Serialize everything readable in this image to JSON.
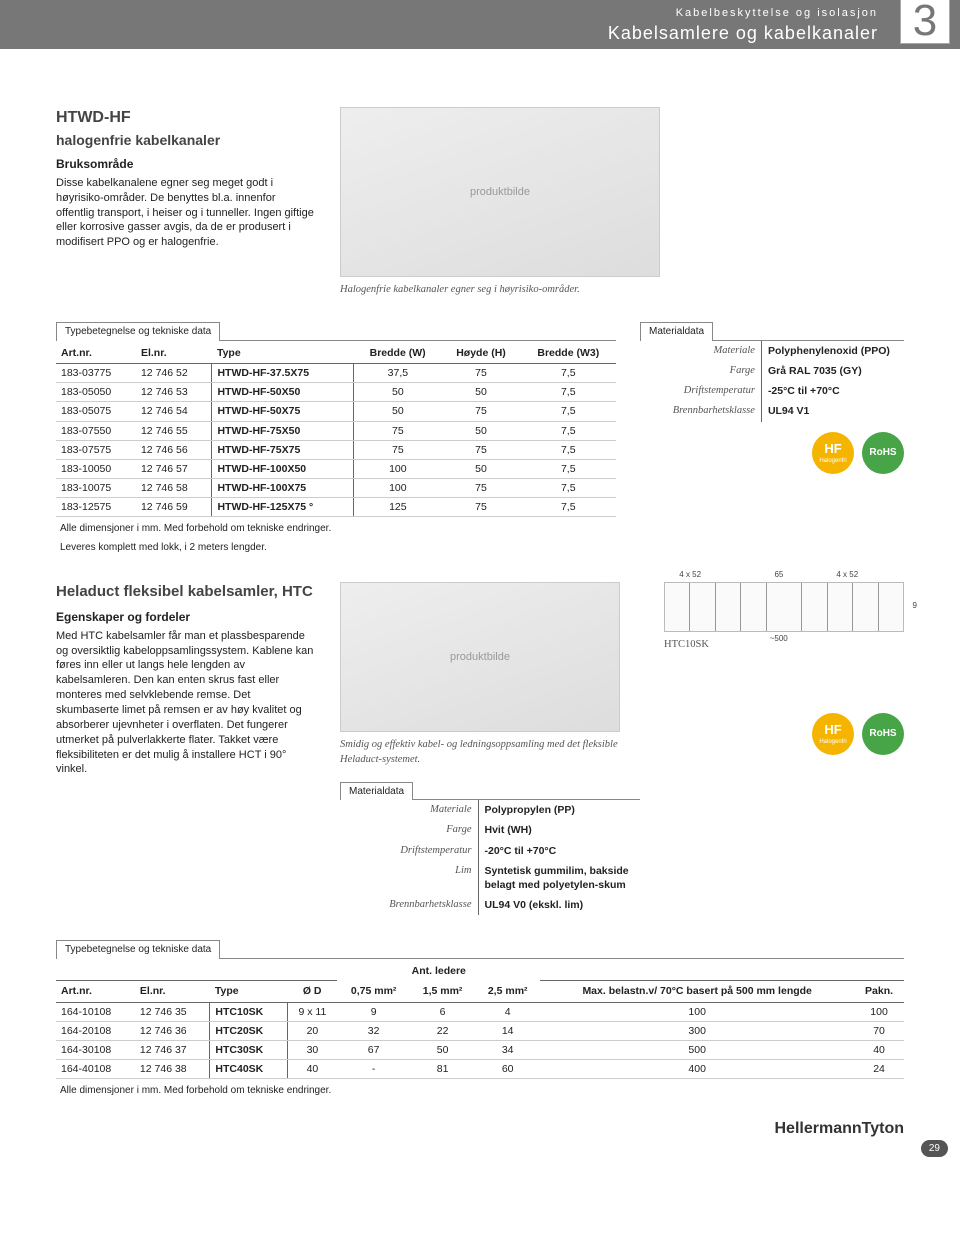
{
  "header": {
    "small": "Kabelbeskyttelse og isolasjon",
    "large": "Kabelsamlere og kabelkanaler",
    "chapter": "3"
  },
  "section1": {
    "title_line1": "HTWD-HF",
    "title_line2": "halogenfrie kabelkanaler",
    "area_heading": "Bruksområde",
    "area_text": "Disse kabelkanalene egner seg meget godt i høyrisiko-områder. De benyttes bl.a. innenfor offentlig transport, i heiser og i tunneller. Ingen giftige eller korrosive gasser avgis, da de er produsert i modifisert PPO og er halogenfrie.",
    "figure_caption": "Halogenfrie kabelkanaler egner seg i høyrisiko-områder.",
    "tech_tab": "Typebetegnelse og tekniske data",
    "tech_columns": [
      "Art.nr.",
      "El.nr.",
      "Type",
      "Bredde (W)",
      "Høyde (H)",
      "Bredde (W3)"
    ],
    "tech_rows": [
      [
        "183-03775",
        "12 746 52",
        "HTWD-HF-37.5X75",
        "37,5",
        "75",
        "7,5"
      ],
      [
        "183-05050",
        "12 746 53",
        "HTWD-HF-50X50",
        "50",
        "50",
        "7,5"
      ],
      [
        "183-05075",
        "12 746 54",
        "HTWD-HF-50X75",
        "50",
        "75",
        "7,5"
      ],
      [
        "183-07550",
        "12 746 55",
        "HTWD-HF-75X50",
        "75",
        "50",
        "7,5"
      ],
      [
        "183-07575",
        "12 746 56",
        "HTWD-HF-75X75",
        "75",
        "75",
        "7,5"
      ],
      [
        "183-10050",
        "12 746 57",
        "HTWD-HF-100X50",
        "100",
        "50",
        "7,5"
      ],
      [
        "183-10075",
        "12 746 58",
        "HTWD-HF-100X75",
        "100",
        "75",
        "7,5"
      ],
      [
        "183-12575",
        "12 746 59",
        "HTWD-HF-125X75 °",
        "125",
        "75",
        "7,5"
      ]
    ],
    "tech_footnote1": "Alle dimensjoner i mm. Med forbehold om tekniske endringer.",
    "tech_footnote2": "Leveres komplett med lokk,  i 2 meters lengder.",
    "material_tab": "Materialdata",
    "material_rows": [
      [
        "Materiale",
        "Polyphenylenoxid (PPO)"
      ],
      [
        "Farge",
        "Grå RAL 7035 (GY)"
      ],
      [
        "Driftstemperatur",
        "-25°C til +70°C"
      ],
      [
        "Brennbarhetsklasse",
        "UL94 V1"
      ]
    ],
    "badge_hf": "HF",
    "badge_hf_sub": "Halogenfri",
    "badge_rohs": "RoHS"
  },
  "section2": {
    "title": "Heladuct fleksibel kabelsamler, HTC",
    "props_heading": "Egenskaper og fordeler",
    "props_text": "Med HTC kabelsamler får man et plassbesparende og oversiktlig kabeloppsamlingssystem. Kablene kan føres inn eller ut langs hele lengden av kabelsamleren. Den kan enten skrus fast eller monteres med selvklebende remse. Det skumbaserte limet på remsen er av høy kvalitet og absorberer ujevnheter i overflaten. Det fungerer utmerket på pulverlakkerte flater. Takket være fleksibiliteten er det mulig å installere HCT i 90° vinkel.",
    "figure_caption": "Smidig og effektiv kabel- og ledningsoppsamling med det fleksible Heladuct-systemet.",
    "diagram_labels": [
      "4 x 52",
      "65",
      "4 x 52",
      "~500",
      "9"
    ],
    "diagram_side_label": "HTC10SK",
    "material_tab": "Materialdata",
    "material_rows": [
      [
        "Materiale",
        "Polypropylen (PP)"
      ],
      [
        "Farge",
        "Hvit (WH)"
      ],
      [
        "Driftstemperatur",
        "-20°C til +70°C"
      ],
      [
        "Lim",
        "Syntetisk gummilim, bakside belagt med polyetylen-skum"
      ],
      [
        "Brennbarhetsklasse",
        "UL94 V0 (ekskl. lim)"
      ]
    ],
    "tech_tab": "Typebetegnelse og tekniske data",
    "tech_super_header": "Ant. ledere",
    "tech_columns": [
      "Art.nr.",
      "El.nr.",
      "Type",
      "Ø D",
      "0,75 mm²",
      "1,5 mm²",
      "2,5 mm²",
      "Max. belastn.v/ 70°C basert på 500 mm lengde",
      "Pakn."
    ],
    "tech_rows": [
      [
        "164-10108",
        "12 746 35",
        "HTC10SK",
        "9 x 11",
        "9",
        "6",
        "4",
        "100",
        "100"
      ],
      [
        "164-20108",
        "12 746 36",
        "HTC20SK",
        "20",
        "32",
        "22",
        "14",
        "300",
        "70"
      ],
      [
        "164-30108",
        "12 746 37",
        "HTC30SK",
        "30",
        "67",
        "50",
        "34",
        "500",
        "40"
      ],
      [
        "164-40108",
        "12 746 38",
        "HTC40SK",
        "40",
        "-",
        "81",
        "60",
        "400",
        "24"
      ]
    ],
    "tech_footnote": "Alle dimensjoner i mm. Med forbehold om tekniske endringer.",
    "badge_hf": "HF",
    "badge_hf_sub": "Halogenfri",
    "badge_rohs": "RoHS"
  },
  "footer": {
    "brand": "HellermannTyton",
    "page": "29"
  }
}
